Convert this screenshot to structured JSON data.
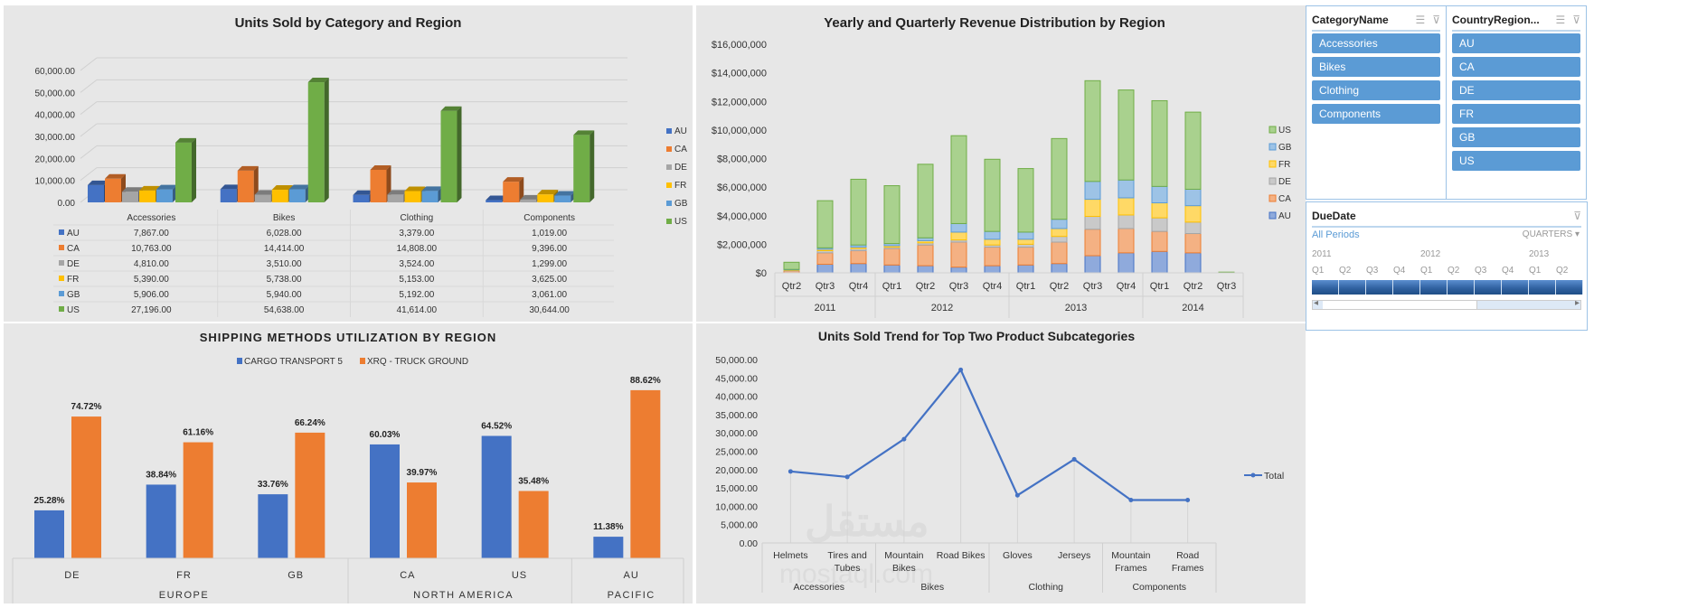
{
  "chart_data": [
    {
      "id": "units-by-category",
      "type": "bar",
      "variant": "3d-clustered-column-with-data-table",
      "title": "Units Sold by Category and Region",
      "categories": [
        "Accessories",
        "Bikes",
        "Clothing",
        "Components"
      ],
      "series": [
        {
          "name": "AU",
          "color": "#4472c4",
          "values": [
            7867,
            6028,
            3379,
            1019
          ],
          "labels": [
            "7,867.00",
            "6,028.00",
            "3,379.00",
            "1,019.00"
          ]
        },
        {
          "name": "CA",
          "color": "#ed7d31",
          "values": [
            10763,
            14414,
            14808,
            9396
          ],
          "labels": [
            "10,763.00",
            "14,414.00",
            "14,808.00",
            "9,396.00"
          ]
        },
        {
          "name": "DE",
          "color": "#a5a5a5",
          "values": [
            4810,
            3510,
            3524,
            1299
          ],
          "labels": [
            "4,810.00",
            "3,510.00",
            "3,524.00",
            "1,299.00"
          ]
        },
        {
          "name": "FR",
          "color": "#ffc000",
          "values": [
            5390,
            5738,
            5153,
            3625
          ],
          "labels": [
            "5,390.00",
            "5,738.00",
            "5,153.00",
            "3,625.00"
          ]
        },
        {
          "name": "GB",
          "color": "#5b9bd5",
          "values": [
            5906,
            5940,
            5192,
            3061
          ],
          "labels": [
            "5,906.00",
            "5,940.00",
            "5,192.00",
            "3,061.00"
          ]
        },
        {
          "name": "US",
          "color": "#70ad47",
          "values": [
            27196,
            54638,
            41614,
            30644
          ],
          "labels": [
            "27,196.00",
            "54,638.00",
            "41,614.00",
            "30,644.00"
          ]
        }
      ],
      "ylim": [
        0,
        60000
      ],
      "yticks": [
        "0.00",
        "10,000.00",
        "20,000.00",
        "30,000.00",
        "40,000.00",
        "50,000.00",
        "60,000.00"
      ],
      "grid": true,
      "legend": "right"
    },
    {
      "id": "revenue-by-region",
      "type": "bar",
      "variant": "stacked-column",
      "title": "Yearly and Quarterly Revenue Distribution  by Region",
      "categories": [
        "Qtr2",
        "Qtr3",
        "Qtr4",
        "Qtr1",
        "Qtr2",
        "Qtr3",
        "Qtr4",
        "Qtr1",
        "Qtr2",
        "Qtr3",
        "Qtr4",
        "Qtr1",
        "Qtr2",
        "Qtr3"
      ],
      "groups": [
        {
          "label": "2011",
          "count": 3
        },
        {
          "label": "2012",
          "count": 4
        },
        {
          "label": "2013",
          "count": 4
        },
        {
          "label": "2014",
          "count": 3
        }
      ],
      "series": [
        {
          "name": "AU",
          "color": "#8faadc",
          "border": "#4472c4",
          "values": [
            0,
            600000,
            650000,
            550000,
            500000,
            400000,
            500000,
            550000,
            650000,
            1200000,
            1400000,
            1500000,
            1400000,
            0
          ]
        },
        {
          "name": "CA",
          "color": "#f4b183",
          "border": "#ed7d31",
          "values": [
            150000,
            800000,
            900000,
            1150000,
            1450000,
            1750000,
            1300000,
            1250000,
            1500000,
            1850000,
            1700000,
            1400000,
            1350000,
            0
          ]
        },
        {
          "name": "DE",
          "color": "#c9c9c9",
          "border": "#a5a5a5",
          "values": [
            20000,
            150000,
            150000,
            100000,
            150000,
            150000,
            150000,
            200000,
            400000,
            900000,
            950000,
            950000,
            800000,
            0
          ]
        },
        {
          "name": "FR",
          "color": "#ffd966",
          "border": "#ffc000",
          "values": [
            50000,
            100000,
            100000,
            100000,
            150000,
            550000,
            400000,
            350000,
            550000,
            1200000,
            1200000,
            1050000,
            1150000,
            0
          ]
        },
        {
          "name": "GB",
          "color": "#9dc3e6",
          "border": "#5b9bd5",
          "values": [
            20000,
            100000,
            150000,
            150000,
            200000,
            600000,
            550000,
            500000,
            650000,
            1250000,
            1250000,
            1150000,
            1150000,
            0
          ]
        },
        {
          "name": "US",
          "color": "#a9d18e",
          "border": "#70ad47",
          "values": [
            500000,
            3300000,
            4600000,
            4050000,
            5150000,
            6150000,
            5050000,
            4450000,
            5650000,
            7050000,
            6300000,
            6000000,
            5400000,
            50000
          ]
        }
      ],
      "ylim": [
        0,
        16000000
      ],
      "yticks": [
        "$0",
        "$2,000,000",
        "$4,000,000",
        "$6,000,000",
        "$8,000,000",
        "$10,000,000",
        "$12,000,000",
        "$14,000,000",
        "$16,000,000"
      ],
      "grid": false,
      "legend": "right",
      "legend_order": [
        "US",
        "GB",
        "FR",
        "DE",
        "CA",
        "AU"
      ]
    },
    {
      "id": "shipping-methods",
      "type": "bar",
      "variant": "clustered-column",
      "title": "SHIPPING METHODS UTILIZATION BY REGION",
      "categories": [
        "DE",
        "FR",
        "GB",
        "CA",
        "US",
        "AU"
      ],
      "groups": [
        {
          "label": "EUROPE",
          "count": 3
        },
        {
          "label": "NORTH AMERICA",
          "count": 2
        },
        {
          "label": "PACIFIC",
          "count": 1
        }
      ],
      "series": [
        {
          "name": "CARGO TRANSPORT 5",
          "color": "#4472c4",
          "values": [
            25.28,
            38.84,
            33.76,
            60.03,
            64.52,
            11.38
          ],
          "labels": [
            "25.28%",
            "38.84%",
            "33.76%",
            "60.03%",
            "64.52%",
            "11.38%"
          ]
        },
        {
          "name": "XRQ - TRUCK GROUND",
          "color": "#ed7d31",
          "values": [
            74.72,
            61.16,
            66.24,
            39.97,
            35.48,
            88.62
          ],
          "labels": [
            "74.72%",
            "61.16%",
            "66.24%",
            "39.97%",
            "35.48%",
            "88.62%"
          ]
        }
      ],
      "ylim": [
        0,
        100
      ],
      "grid": false,
      "legend": "top"
    },
    {
      "id": "units-trend",
      "type": "line",
      "title": "Units Sold Trend for Top Two Product Subcategories",
      "categories": [
        "Helmets",
        "Tires and Tubes",
        "Mountain Bikes",
        "Road Bikes",
        "Gloves",
        "Jerseys",
        "Mountain Frames",
        "Road Frames"
      ],
      "category_lines": [
        [
          "Helmets"
        ],
        [
          "Tires and",
          "Tubes"
        ],
        [
          "Mountain",
          "Bikes"
        ],
        [
          "Road Bikes"
        ],
        [
          "Gloves"
        ],
        [
          "Jerseys"
        ],
        [
          "Mountain",
          "Frames"
        ],
        [
          "Road",
          "Frames"
        ]
      ],
      "groups": [
        {
          "label": "Accessories",
          "count": 2
        },
        {
          "label": "Bikes",
          "count": 2
        },
        {
          "label": "Clothing",
          "count": 2
        },
        {
          "label": "Components",
          "count": 2
        }
      ],
      "series": [
        {
          "name": "Total",
          "color": "#4472c4",
          "values": [
            19500,
            18000,
            28300,
            47200,
            13000,
            22800,
            11700,
            11700
          ]
        }
      ],
      "ylim": [
        0,
        50000
      ],
      "yticks": [
        "0.00",
        "5,000.00",
        "10,000.00",
        "15,000.00",
        "20,000.00",
        "25,000.00",
        "30,000.00",
        "35,000.00",
        "40,000.00",
        "45,000.00",
        "50,000.00"
      ],
      "grid": false,
      "legend": "right"
    }
  ],
  "slicers": {
    "category": {
      "title": "CategoryName",
      "items": [
        "Accessories",
        "Bikes",
        "Clothing",
        "Components"
      ]
    },
    "country": {
      "title": "CountryRegion...",
      "items": [
        "AU",
        "CA",
        "DE",
        "FR",
        "GB",
        "US"
      ]
    },
    "timeline": {
      "title": "DueDate",
      "period_label": "All Periods",
      "level_label": "QUARTERS",
      "years": [
        "2011",
        "2012",
        "2013"
      ],
      "quarters": [
        "Q1",
        "Q2",
        "Q3",
        "Q4",
        "Q1",
        "Q2",
        "Q3",
        "Q4",
        "Q1",
        "Q2"
      ]
    }
  },
  "icons": {
    "multi_select": "☰",
    "clear_filter": "⊽",
    "dropdown": "▾",
    "scroll_left": "◂",
    "scroll_right": "▸"
  },
  "watermark": {
    "line1": "مستقل",
    "line2": "mostaql.com"
  }
}
